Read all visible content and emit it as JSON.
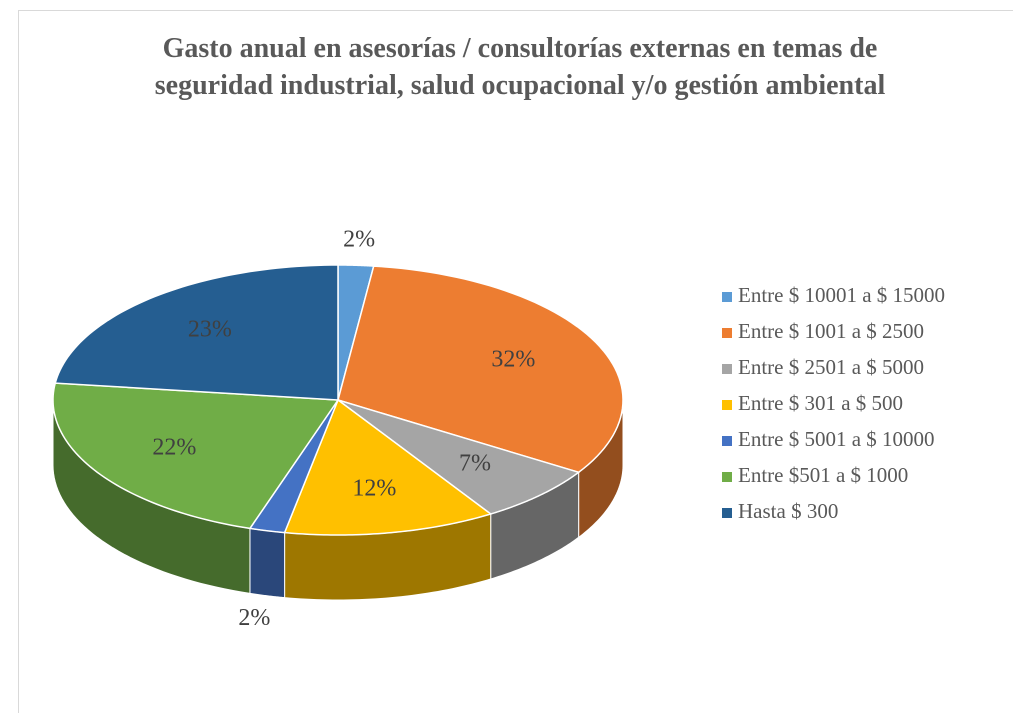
{
  "chart_data": {
    "type": "pie",
    "title": "Gasto anual en asesorías / consultorías externas en temas de seguridad industrial, salud ocupacional y/o gestión ambiental",
    "categories": [
      "Entre $ 10001 a $ 15000",
      "Entre $ 1001 a $ 2500",
      "Entre $ 2501 a $ 5000",
      "Entre $ 301 a $ 500",
      "Entre $ 5001 a $ 10000",
      "Entre $501 a $ 1000",
      "Hasta $ 300"
    ],
    "values": [
      2,
      32,
      7,
      12,
      2,
      22,
      23
    ],
    "value_labels": [
      "2%",
      "32%",
      "7%",
      "12%",
      "2%",
      "22%",
      "23%"
    ],
    "colors": [
      "#5b9bd5",
      "#ed7d31",
      "#a5a5a5",
      "#ffc000",
      "#4472c4",
      "#70ad47",
      "#255e91"
    ],
    "legend": "right"
  }
}
